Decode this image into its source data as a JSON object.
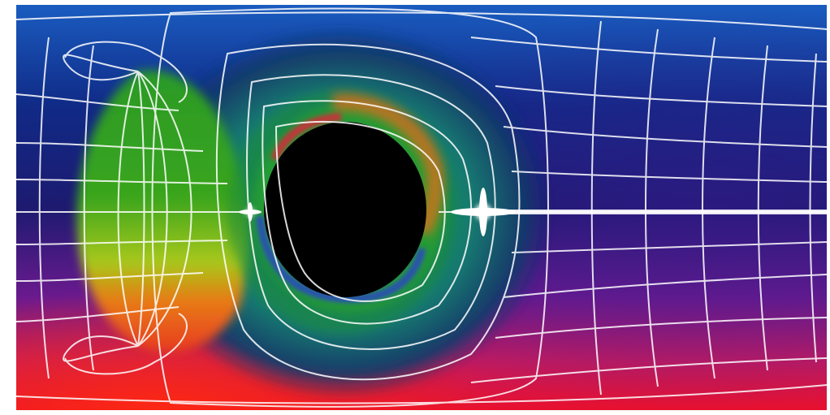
{
  "image": {
    "subject": "black-hole-lensing-render",
    "palette": {
      "sky_top": "#1a57b8",
      "sky_mid": "#1f1a6e",
      "sky_low": "#5a1a8c",
      "sky_bottom": "#e0123a",
      "green": "#3aa01f",
      "yellow": "#c8d21a",
      "orange": "#e8701a",
      "shadow": "#000000",
      "grid": "#ffffff"
    }
  }
}
